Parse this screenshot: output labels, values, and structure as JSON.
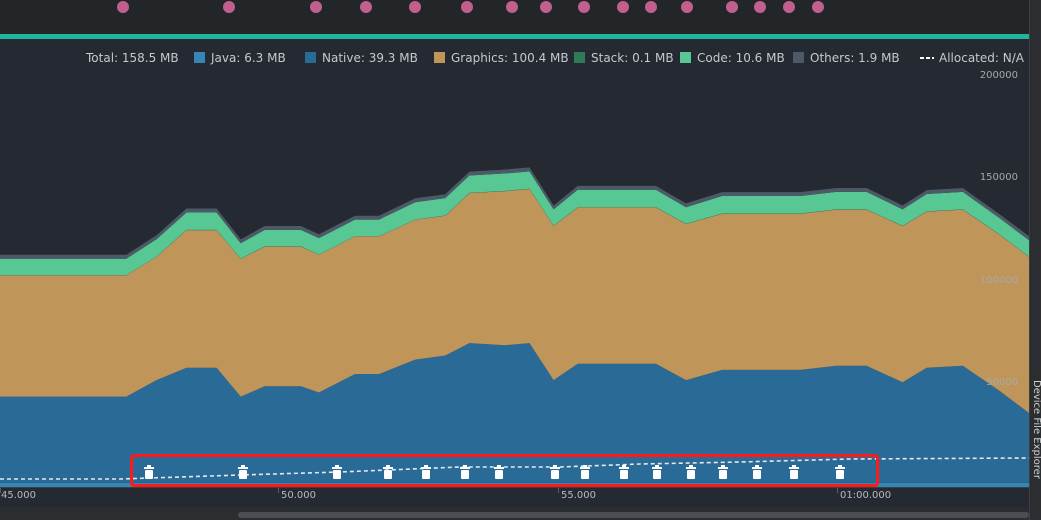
{
  "legend": {
    "total": "Total: 158.5 MB",
    "java": "Java: 6.3 MB",
    "native": "Native: 39.3 MB",
    "graphics": "Graphics: 100.4 MB",
    "stack": "Stack: 0.1 MB",
    "code": "Code: 10.6 MB",
    "others": "Others: 1.9 MB",
    "allocated": "Allocated: N/A"
  },
  "colors": {
    "java": "#3585b6",
    "native": "#296a96",
    "graphics": "#c0955a",
    "stack": "#2f7a57",
    "code": "#57c893",
    "others": "#4b5a66",
    "accent": "#1fb59a",
    "event_dot": "#c25f8f",
    "highlight": "#ff1a1a"
  },
  "y_axis": {
    "ticks": [
      "200000",
      "150000",
      "100000",
      "50000"
    ]
  },
  "x_axis": {
    "ticks": [
      "45.000",
      "50.000",
      "55.000",
      "01:00.000"
    ]
  },
  "right_tool_window": {
    "label": "Device File Explorer"
  },
  "gc_event_icon": "trash-can-icon",
  "gc_event_count": 19,
  "event_dot_count": 19,
  "chart_data": {
    "type": "area",
    "stacked": true,
    "title": "",
    "xlabel": "",
    "ylabel": "",
    "x": [
      44.9,
      47.0,
      47.5,
      48.0,
      48.5,
      48.9,
      49.3,
      49.9,
      50.2,
      50.8,
      51.2,
      51.8,
      52.3,
      52.7,
      53.3,
      53.7,
      54.1,
      54.5,
      55.0,
      55.8,
      56.3,
      56.9,
      57.6,
      58.2,
      58.8,
      59.3,
      59.9,
      60.3,
      60.9,
      61.5,
      62.0
    ],
    "ylim": [
      0,
      200000
    ],
    "series": [
      {
        "name": "Java",
        "values": [
          2000,
          2000,
          2000,
          2000,
          2000,
          2000,
          2000,
          2000,
          2000,
          2000,
          2000,
          2000,
          2000,
          2000,
          2000,
          2000,
          2000,
          2000,
          2000,
          2000,
          2000,
          2000,
          2000,
          2000,
          2000,
          2000,
          2000,
          2000,
          2000,
          2000,
          2000
        ]
      },
      {
        "name": "Native",
        "values": [
          42000,
          42000,
          50000,
          56000,
          56000,
          42000,
          47000,
          47000,
          44000,
          53000,
          53000,
          60000,
          62000,
          68000,
          67000,
          68000,
          50000,
          58000,
          58000,
          58000,
          50000,
          55000,
          55000,
          55000,
          57000,
          57000,
          49000,
          56000,
          57000,
          45000,
          34000
        ]
      },
      {
        "name": "Graphics",
        "values": [
          59000,
          59000,
          60000,
          67000,
          67000,
          67000,
          68000,
          68000,
          67000,
          67000,
          67000,
          68000,
          68000,
          73000,
          75000,
          75000,
          75000,
          76000,
          76000,
          76000,
          76000,
          76000,
          76000,
          76000,
          76000,
          76000,
          76000,
          76000,
          76000,
          76000,
          76000
        ]
      },
      {
        "name": "Stack",
        "values": [
          100,
          100,
          100,
          100,
          100,
          100,
          100,
          100,
          100,
          100,
          100,
          100,
          100,
          100,
          100,
          100,
          100,
          100,
          100,
          100,
          100,
          100,
          100,
          100,
          100,
          100,
          100,
          100,
          100,
          100,
          100
        ]
      },
      {
        "name": "Code",
        "values": [
          8000,
          8000,
          8500,
          8500,
          8500,
          7500,
          8000,
          8000,
          8000,
          8000,
          8000,
          8500,
          8500,
          8500,
          8500,
          8500,
          8000,
          8500,
          8500,
          8500,
          8000,
          8500,
          8500,
          8500,
          8500,
          8500,
          8000,
          8500,
          8500,
          8000,
          8000
        ]
      },
      {
        "name": "Others",
        "values": [
          1900,
          1900,
          1900,
          1900,
          1900,
          1900,
          1900,
          1900,
          1900,
          1900,
          1900,
          1900,
          1900,
          1900,
          1900,
          1900,
          1900,
          1900,
          1900,
          1900,
          1900,
          1900,
          1900,
          1900,
          1900,
          1900,
          1900,
          1900,
          1900,
          1900,
          1900
        ]
      }
    ]
  }
}
